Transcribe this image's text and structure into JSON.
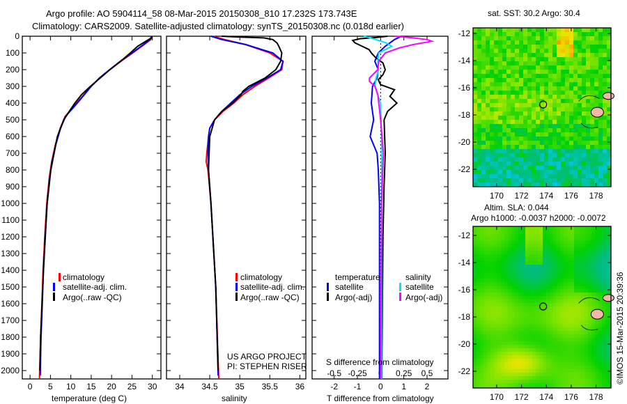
{
  "title": {
    "line1": "Argo profile: AO 5904114_58 08-Mar-2015 20150308_810 17.232S 173.743E",
    "line2": "Climatology: CARS2009. Satellite-adjusted climatology: synTS_20150308.nc (0.018d earlier)"
  },
  "credits": {
    "project": "US ARGO PROJECT",
    "pi": "PI: STEPHEN RISER"
  },
  "timestamp": "©IMOS 15-Mar-2015 20:39:36",
  "colors": {
    "climatology": "#ff0000",
    "satellite": "#0000ff",
    "argo": "#000000",
    "sal_satellite": "#00e5ee",
    "sal_argo": "#ff00ff"
  },
  "chart_data": [
    {
      "type": "line",
      "id": "temperature",
      "xlabel": "temperature (deg C)",
      "ylabel": "",
      "xlim": [
        -1.9,
        32.1
      ],
      "ylim": [
        2050,
        0
      ],
      "xticks": [
        0,
        5,
        10,
        15,
        20,
        25,
        30
      ],
      "yticks": [
        0,
        100,
        200,
        300,
        400,
        500,
        600,
        700,
        800,
        900,
        1000,
        1100,
        1200,
        1300,
        1400,
        1500,
        1600,
        1700,
        1800,
        1900,
        2000
      ],
      "legend": {
        "placement": "lower-center",
        "entries": [
          "climatology",
          "satellite-adj. clim.",
          "Argo(..raw -QC)"
        ]
      },
      "series": [
        {
          "name": "climatology",
          "color": "#ff0000",
          "depth": [
            0,
            20,
            50,
            100,
            150,
            200,
            250,
            300,
            400,
            480,
            550,
            650,
            750,
            850,
            1000,
            1200,
            1400,
            1600,
            1800,
            2050
          ],
          "values": [
            30.0,
            29.6,
            28.0,
            25.2,
            22.3,
            19.6,
            17.1,
            15.0,
            11.4,
            8.6,
            7.4,
            6.2,
            5.3,
            4.7,
            4.1,
            3.6,
            3.2,
            2.9,
            2.6,
            2.3
          ]
        },
        {
          "name": "satellite-adj. clim.",
          "color": "#0000ff",
          "depth": [
            0,
            20,
            50,
            100,
            150,
            200,
            250,
            300,
            400,
            480,
            550,
            650,
            750,
            850,
            1000,
            1200,
            1400,
            1600,
            1800,
            2030
          ],
          "values": [
            29.8,
            29.4,
            27.8,
            25.0,
            22.1,
            19.5,
            17.0,
            15.0,
            11.6,
            8.7,
            7.5,
            6.3,
            5.4,
            4.8,
            4.2,
            3.7,
            3.3,
            3.0,
            2.7,
            2.5
          ]
        },
        {
          "name": "Argo(..raw -QC)",
          "color": "#000000",
          "depth": [
            0,
            10,
            30,
            60,
            100,
            150,
            200,
            250,
            300,
            350,
            400,
            450,
            500,
            600,
            800,
            1000,
            1400,
            1800,
            2000
          ],
          "values": [
            29.9,
            29.8,
            28.4,
            26.4,
            24.6,
            22.2,
            19.6,
            17.2,
            14.8,
            12.6,
            11.0,
            9.6,
            8.3,
            6.7,
            5.1,
            4.2,
            3.3,
            2.6,
            2.4
          ]
        }
      ]
    },
    {
      "type": "line",
      "id": "salinity",
      "xlabel": "salinity",
      "xlim": [
        33.78,
        36.1
      ],
      "ylim": [
        2050,
        0
      ],
      "xticks": [
        34,
        34.5,
        35,
        35.5,
        36
      ],
      "legend": {
        "placement": "lower-center",
        "entries": [
          "climatology",
          "satellite-adj. clim.",
          "Argo(..raw -QC)"
        ]
      },
      "series": [
        {
          "name": "climatology",
          "color": "#ff0000",
          "depth": [
            0,
            20,
            50,
            100,
            150,
            200,
            250,
            300,
            350,
            400,
            450,
            500,
            550,
            600,
            700,
            750,
            800,
            1000,
            1500,
            2050
          ],
          "values": [
            34.55,
            34.75,
            35.1,
            35.5,
            35.72,
            35.7,
            35.48,
            35.25,
            35.05,
            34.9,
            34.72,
            34.58,
            34.5,
            34.48,
            34.45,
            34.44,
            34.47,
            34.52,
            34.6,
            34.65
          ]
        },
        {
          "name": "satellite-adj. clim.",
          "color": "#0000ff",
          "depth": [
            0,
            20,
            50,
            100,
            150,
            200,
            250,
            300,
            350,
            400,
            450,
            500,
            550,
            600,
            700,
            800,
            1000,
            1500,
            2030
          ],
          "values": [
            34.52,
            34.7,
            35.1,
            35.55,
            35.72,
            35.68,
            35.45,
            35.2,
            35.0,
            34.85,
            34.7,
            34.58,
            34.5,
            34.48,
            34.47,
            34.48,
            34.52,
            34.6,
            34.64
          ]
        },
        {
          "name": "Argo(..raw -QC)",
          "color": "#000000",
          "depth": [
            0,
            5,
            10,
            20,
            40,
            60,
            100,
            150,
            200,
            250,
            300,
            330,
            350,
            400,
            450,
            500,
            600,
            800,
            1000,
            1500,
            2000
          ],
          "values": [
            34.7,
            35.0,
            35.4,
            35.55,
            35.62,
            35.65,
            35.7,
            35.68,
            35.6,
            35.42,
            35.15,
            35.05,
            35.02,
            34.88,
            34.7,
            34.58,
            34.5,
            34.48,
            34.52,
            34.6,
            34.64
          ]
        }
      ]
    },
    {
      "type": "line",
      "id": "difference",
      "xlabel": "T difference from climatology",
      "xlabel2": "S difference from climatology",
      "xlim": [
        -2.95,
        2.9
      ],
      "xlim_salinity": [
        -0.7375,
        0.725
      ],
      "ylim": [
        2050,
        0
      ],
      "xticks": [
        -2,
        -1,
        0,
        1,
        2
      ],
      "xticks_salinity": [
        -0.5,
        -0.25,
        0,
        0.25,
        0.5
      ],
      "legend": {
        "placement": "lower-center",
        "temperature_heading": "temperature",
        "salinity_heading": "salinity",
        "entries": [
          "satellite",
          "Argo(-adj)",
          "satellite",
          "Argo(-adj)"
        ]
      },
      "series": [
        {
          "name": "temperature satellite",
          "color": "#0000ff",
          "depth": [
            0,
            20,
            60,
            100,
            150,
            200,
            250,
            300,
            400,
            500,
            600,
            650,
            700,
            800,
            1000,
            2050
          ],
          "values": [
            0.9,
            0.6,
            0.2,
            -0.1,
            -0.25,
            -0.1,
            -0.15,
            -0.35,
            -0.4,
            -0.3,
            -0.45,
            -0.3,
            -0.15,
            -0.1,
            -0.05,
            -0.05
          ]
        },
        {
          "name": "temperature Argo(-adj)",
          "color": "#000000",
          "depth": [
            0,
            8,
            15,
            25,
            40,
            60,
            80,
            100,
            130,
            160,
            200,
            230,
            260,
            290,
            320,
            360,
            400,
            450,
            500,
            700,
            900,
            1200,
            2050
          ],
          "values": [
            0.3,
            -0.2,
            -0.9,
            -1.2,
            -1.1,
            -0.8,
            -0.5,
            -0.4,
            -0.2,
            0.1,
            0.2,
            0.1,
            -0.1,
            0.0,
            0.6,
            0.4,
            0.7,
            0.3,
            0.15,
            0.2,
            0.15,
            0.1,
            0.05
          ]
        },
        {
          "name": "salinity satellite",
          "color": "#00e5ee",
          "depth": [
            0,
            20,
            40,
            60,
            80,
            100,
            150,
            200,
            250,
            300,
            350,
            400,
            600,
            1000,
            2050
          ],
          "values": [
            -0.18,
            -0.05,
            0.06,
            0.12,
            0.05,
            -0.02,
            -0.03,
            -0.02,
            -0.05,
            -0.06,
            -0.03,
            0.0,
            0.01,
            0.01,
            0.01
          ]
        },
        {
          "name": "salinity Argo(-adj)",
          "color": "#ff00ff",
          "depth": [
            0,
            10,
            20,
            30,
            50,
            70,
            100,
            150,
            200,
            250,
            270,
            300,
            350,
            400,
            500,
            700,
            1000,
            2050
          ],
          "values": [
            0.15,
            0.35,
            0.5,
            0.55,
            0.35,
            0.2,
            0.05,
            -0.02,
            -0.03,
            -0.12,
            -0.12,
            -0.06,
            -0.03,
            -0.02,
            0.0,
            0.03,
            0.01,
            0.0
          ]
        }
      ]
    },
    {
      "type": "heatmap",
      "id": "sst-map",
      "title": "sat. SST: 30.2 Argo: 30.4",
      "xlim": [
        168.1,
        179.2
      ],
      "ylim": [
        -23.3,
        -11.6
      ],
      "xticks": [
        170,
        172,
        174,
        176,
        178
      ],
      "yticks": [
        -12,
        -14,
        -16,
        -18,
        -20,
        -22
      ],
      "marker": {
        "lon": 173.743,
        "lat": -17.232
      }
    },
    {
      "type": "heatmap",
      "id": "sla-map",
      "title": "Altim. SLA: 0.044",
      "subtitle": "Argo h1000: -0.0037 h2000: -0.0072",
      "xlim": [
        168.1,
        179.2
      ],
      "ylim": [
        -23.2,
        -11.6
      ],
      "xticks": [
        170,
        172,
        174,
        176,
        178
      ],
      "yticks": [
        -12,
        -14,
        -16,
        -18,
        -20,
        -22
      ],
      "marker": {
        "lon": 173.743,
        "lat": -17.232
      }
    }
  ]
}
